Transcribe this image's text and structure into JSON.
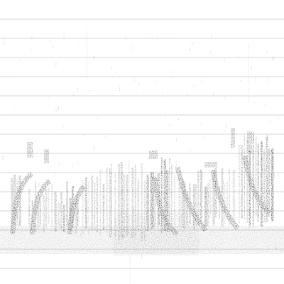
{
  "image": {
    "kind": "spectrogram",
    "background_color": "#ffffff",
    "ink_color": "#000000",
    "gridline_color": "#c8c8c8",
    "horizontal_gridlines": 14,
    "axis_labels_visible": false
  }
}
